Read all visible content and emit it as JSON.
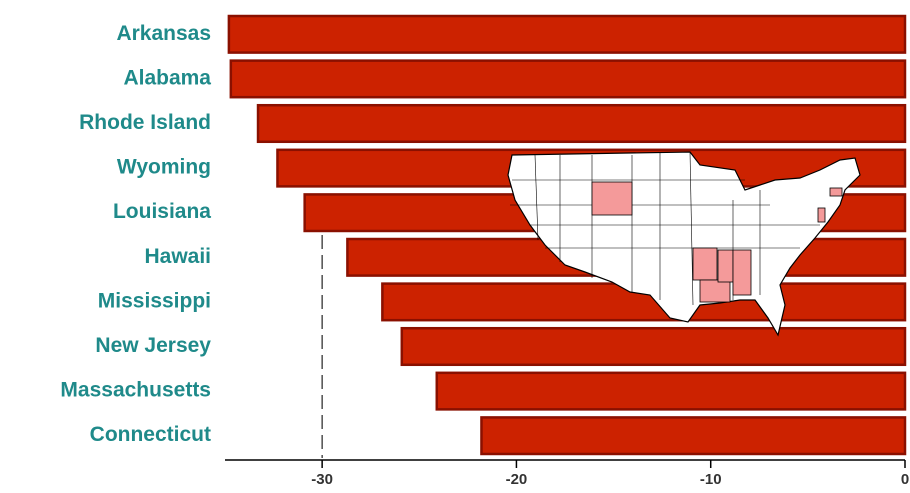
{
  "chart_data": {
    "type": "bar",
    "orientation": "horizontal",
    "categories": [
      "Arkansas",
      "Alabama",
      "Rhode Island",
      "Wyoming",
      "Louisiana",
      "Hawaii",
      "Mississippi",
      "New Jersey",
      "Massachusetts",
      "Connecticut"
    ],
    "values": [
      -34.8,
      -34.7,
      -33.3,
      -32.3,
      -30.9,
      -28.7,
      -26.9,
      -25.9,
      -24.1,
      -21.8
    ],
    "color": "#cc2200",
    "edge_color": "#8a1000",
    "xlim": [
      -35,
      0
    ],
    "xticks": [
      -30,
      -20,
      -10,
      0
    ],
    "reference_line": -30
  }
}
